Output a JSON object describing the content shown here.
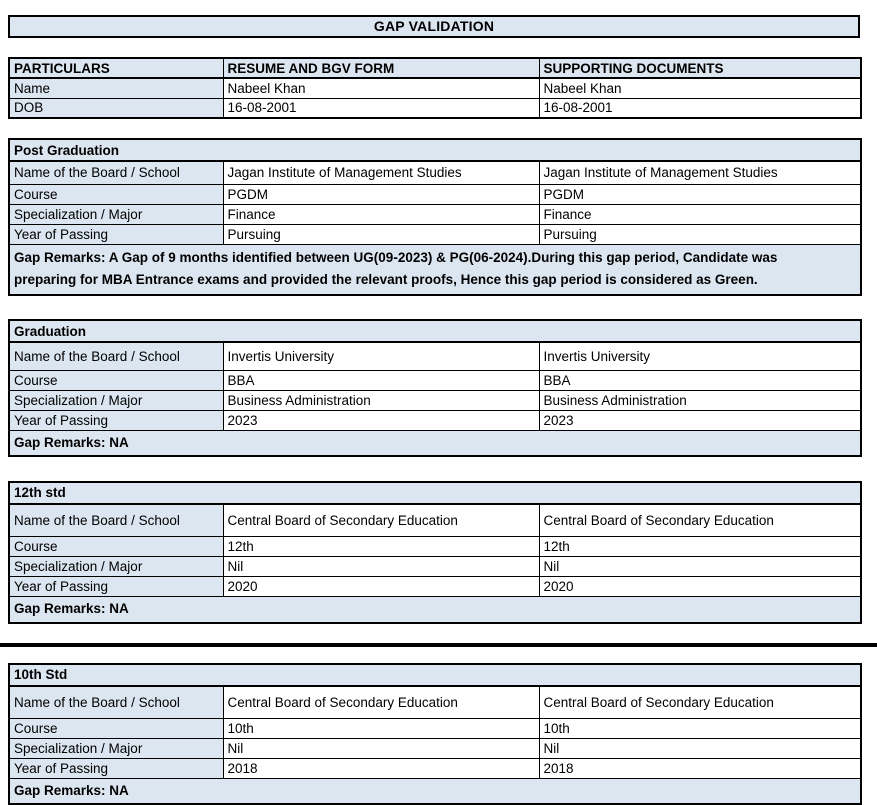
{
  "title": "GAP VALIDATION",
  "colors": {
    "header_fill": "#dce6f1",
    "border": "#000000",
    "text": "#000000",
    "page_background": "#ffffff"
  },
  "summary_table": {
    "headers": [
      "PARTICULARS",
      "RESUME AND BGV FORM",
      "SUPPORTING DOCUMENTS"
    ],
    "rows": [
      {
        "label": "Name",
        "resume": "Nabeel Khan",
        "supporting": "Nabeel Khan"
      },
      {
        "label": "DOB",
        "resume": "16-08-2001",
        "supporting": "16-08-2001"
      }
    ]
  },
  "sections": [
    {
      "title": "Post Graduation",
      "rows": [
        {
          "label": "Name of the Board / School",
          "resume": "Jagan Institute of Management Studies",
          "supporting": "Jagan Institute of Management Studies"
        },
        {
          "label": "Course",
          "resume": "PGDM",
          "supporting": "PGDM"
        },
        {
          "label": "Specialization / Major",
          "resume": "Finance",
          "supporting": "Finance"
        },
        {
          "label": "Year of Passing",
          "resume": "Pursuing",
          "supporting": "Pursuing"
        }
      ],
      "gap_remarks": "Gap Remarks: A Gap of 9 months identified between UG(09-2023) & PG(06-2024).During this gap period, Candidate was preparing for MBA Entrance exams and provided the relevant proofs, Hence this gap period is considered as Green."
    },
    {
      "title": "Graduation",
      "rows": [
        {
          "label": "Name of the Board / School",
          "resume": "Invertis University",
          "supporting": "Invertis University"
        },
        {
          "label": "Course",
          "resume": "BBA",
          "supporting": "BBA"
        },
        {
          "label": "Specialization / Major",
          "resume": "Business Administration",
          "supporting": "Business Administration"
        },
        {
          "label": "Year of Passing",
          "resume": "2023",
          "supporting": "2023"
        }
      ],
      "gap_remarks": "Gap Remarks: NA"
    },
    {
      "title": "12th std",
      "rows": [
        {
          "label": "Name of the Board / School",
          "resume": "Central Board of Secondary Education",
          "supporting": "Central Board of Secondary Education"
        },
        {
          "label": "Course",
          "resume": "12th",
          "supporting": "12th"
        },
        {
          "label": "Specialization / Major",
          "resume": "Nil",
          "supporting": "Nil"
        },
        {
          "label": "Year of Passing",
          "resume": "2020",
          "supporting": "2020"
        }
      ],
      "gap_remarks": "Gap Remarks: NA"
    },
    {
      "title": "10th Std",
      "rows": [
        {
          "label": "Name of the Board / School",
          "resume": "Central Board of Secondary Education",
          "supporting": "Central Board of Secondary Education"
        },
        {
          "label": "Course",
          "resume": "10th",
          "supporting": "10th"
        },
        {
          "label": "Specialization / Major",
          "resume": "Nil",
          "supporting": "Nil"
        },
        {
          "label": "Year of Passing",
          "resume": "2018",
          "supporting": "2018"
        }
      ],
      "gap_remarks": "Gap Remarks: NA"
    }
  ]
}
